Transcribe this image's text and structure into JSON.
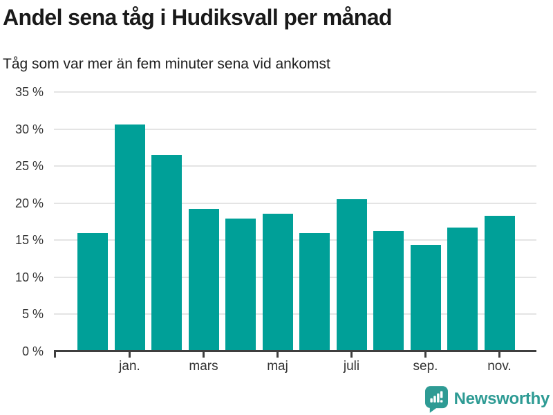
{
  "header": {
    "title": "Andel sena tåg i Hudiksvall per månad",
    "subtitle": "Tåg som var mer än fem minuter sena vid ankomst"
  },
  "chart_data": {
    "type": "bar",
    "title": "Andel sena tåg i Hudiksvall per månad",
    "subtitle": "Tåg som var mer än fem minuter sena vid ankomst",
    "unit": "percent",
    "n_bars": 12,
    "values": [
      16.0,
      30.6,
      26.5,
      19.2,
      17.9,
      18.6,
      16.0,
      20.5,
      16.2,
      14.4,
      16.7,
      18.3
    ],
    "x_tick_labels": [
      "jan.",
      "mars",
      "maj",
      "juli",
      "sep.",
      "nov."
    ],
    "x_tick_bar_indices": [
      1,
      3,
      5,
      7,
      9,
      11
    ],
    "y_ticks": [
      0,
      5,
      10,
      15,
      20,
      25,
      30,
      35
    ],
    "y_tick_labels": [
      "0 %",
      "5 %",
      "10 %",
      "15 %",
      "20 %",
      "25 %",
      "30 %",
      "35 %"
    ],
    "ylim": [
      0,
      35
    ],
    "grid": "horizontal-only",
    "legend": "none",
    "bar_color": "#00a098"
  },
  "footer": {
    "brand": "Newsworthy",
    "logo_icon": "speech-bubble-bar-chart-icon"
  },
  "colors": {
    "bar": "#00a098",
    "brand_teal": "#2e9b94",
    "grid": "#e4e4e4",
    "axis": "#3f3f3f",
    "title_text": "#1a1a1a",
    "tick_text": "#333333",
    "background": "#ffffff"
  }
}
